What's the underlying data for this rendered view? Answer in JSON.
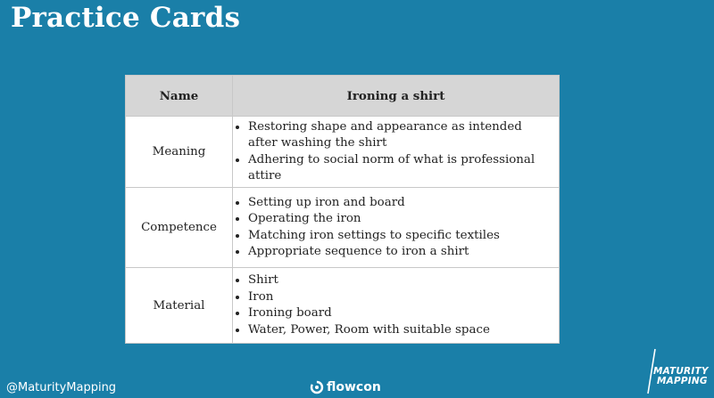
{
  "slide": {
    "title": "Practice Cards"
  },
  "table": {
    "headers": [
      "Name",
      "Ironing a shirt"
    ],
    "rows": [
      {
        "name": "Meaning",
        "items": [
          "Restoring shape and appearance as intended after washing the shirt",
          "Adhering to social norm of what is professional attire"
        ]
      },
      {
        "name": "Competence",
        "items": [
          "Setting up iron and board",
          "Operating the iron",
          "Matching iron settings to specific textiles",
          "Appropriate sequence to iron a shirt"
        ]
      },
      {
        "name": "Material",
        "items": [
          "Shirt",
          "Iron",
          "Ironing board",
          "Water, Power, Room with suitable space"
        ]
      }
    ]
  },
  "footer": {
    "handle": "@MaturityMapping",
    "flowcon_logo": "flowcon",
    "mm_logo_line1": "MATURITY",
    "mm_logo_line2": "MAPPING"
  },
  "colors": {
    "background": "#1a7fa8",
    "header_fill": "#d6d6d6"
  },
  "icons": [
    "flowcon-logo-icon",
    "maturity-mapping-logo-icon"
  ]
}
